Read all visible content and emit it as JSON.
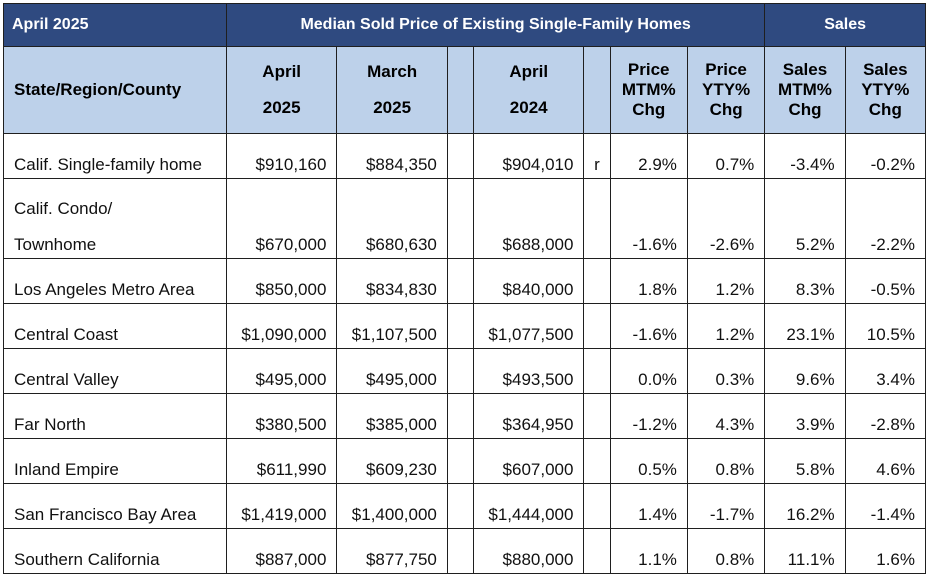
{
  "header": {
    "period": "April 2025",
    "price_group": "Median Sold Price of Existing Single-Family Homes",
    "sales_group": "Sales"
  },
  "columns": {
    "region": "State/Region/County",
    "apr25": [
      "April",
      "2025"
    ],
    "mar25": [
      "March",
      "2025"
    ],
    "apr24": [
      "April",
      "2024"
    ],
    "price_mtm": "Price MTM% Chg",
    "price_yty": "Price YTY% Chg",
    "sales_mtm": "Sales MTM% Chg",
    "sales_yty": "Sales YTY% Chg"
  },
  "rows": [
    {
      "region": [
        "Calif. Single-family home"
      ],
      "apr25": "$910,160",
      "mar25": "$884,350",
      "apr24": "$904,010",
      "flag": "r",
      "price_mtm": "2.9%",
      "price_yty": "0.7%",
      "sales_mtm": "-3.4%",
      "sales_yty": "-0.2%"
    },
    {
      "region": [
        "Calif. Condo/",
        "Townhome"
      ],
      "apr25": "$670,000",
      "mar25": "$680,630",
      "apr24": "$688,000",
      "flag": "",
      "price_mtm": "-1.6%",
      "price_yty": "-2.6%",
      "sales_mtm": "5.2%",
      "sales_yty": "-2.2%"
    },
    {
      "region": [
        "Los Angeles Metro Area"
      ],
      "apr25": "$850,000",
      "mar25": "$834,830",
      "apr24": "$840,000",
      "flag": "",
      "price_mtm": "1.8%",
      "price_yty": "1.2%",
      "sales_mtm": "8.3%",
      "sales_yty": "-0.5%"
    },
    {
      "region": [
        "Central Coast"
      ],
      "apr25": "$1,090,000",
      "mar25": "$1,107,500",
      "apr24": "$1,077,500",
      "flag": "",
      "price_mtm": "-1.6%",
      "price_yty": "1.2%",
      "sales_mtm": "23.1%",
      "sales_yty": "10.5%"
    },
    {
      "region": [
        "Central Valley"
      ],
      "apr25": "$495,000",
      "mar25": "$495,000",
      "apr24": "$493,500",
      "flag": "",
      "price_mtm": "0.0%",
      "price_yty": "0.3%",
      "sales_mtm": "9.6%",
      "sales_yty": "3.4%"
    },
    {
      "region": [
        "Far North"
      ],
      "apr25": "$380,500",
      "mar25": "$385,000",
      "apr24": "$364,950",
      "flag": "",
      "price_mtm": "-1.2%",
      "price_yty": "4.3%",
      "sales_mtm": "3.9%",
      "sales_yty": "-2.8%"
    },
    {
      "region": [
        "Inland Empire"
      ],
      "apr25": "$611,990",
      "mar25": "$609,230",
      "apr24": "$607,000",
      "flag": "",
      "price_mtm": "0.5%",
      "price_yty": "0.8%",
      "sales_mtm": "5.8%",
      "sales_yty": "4.6%"
    },
    {
      "region": [
        "San Francisco Bay Area"
      ],
      "apr25": "$1,419,000",
      "mar25": "$1,400,000",
      "apr24": "$1,444,000",
      "flag": "",
      "price_mtm": "1.4%",
      "price_yty": "-1.7%",
      "sales_mtm": "16.2%",
      "sales_yty": "-1.4%"
    },
    {
      "region": [
        "Southern California"
      ],
      "apr25": "$887,000",
      "mar25": "$877,750",
      "apr24": "$880,000",
      "flag": "",
      "price_mtm": "1.1%",
      "price_yty": "0.8%",
      "sales_mtm": "11.1%",
      "sales_yty": "1.6%"
    }
  ],
  "colors": {
    "title_bg": "#2f4a80",
    "header_bg": "#bdd1ea",
    "border": "#1f1f1f"
  }
}
